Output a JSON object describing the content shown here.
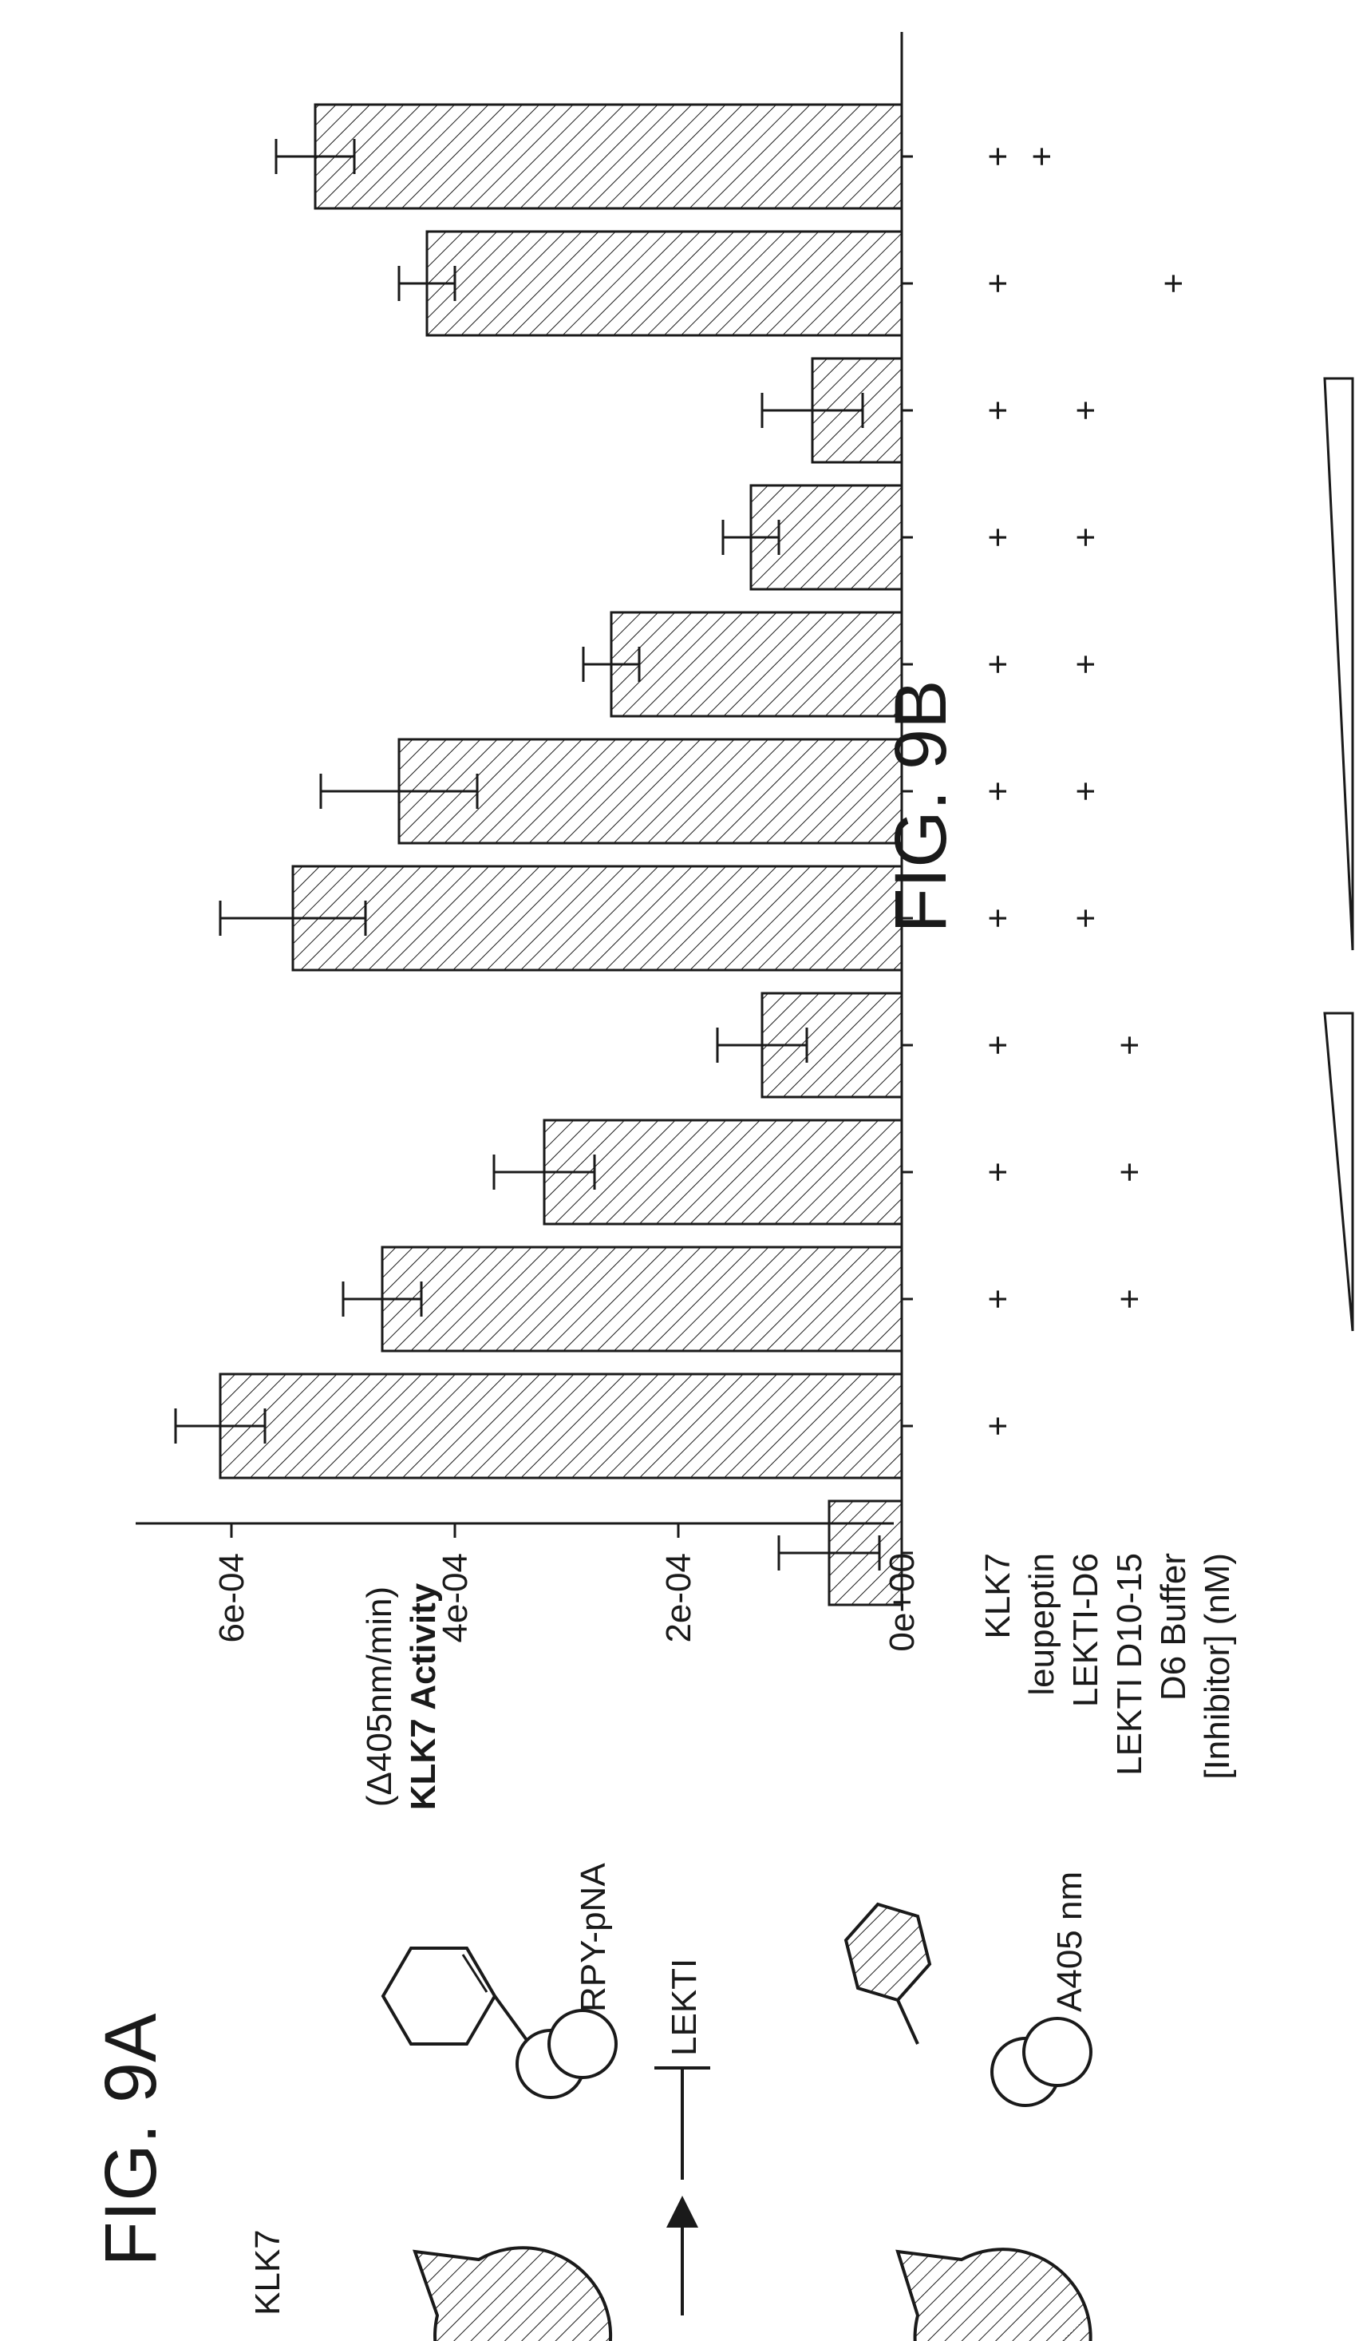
{
  "figure_a": {
    "title": "FIG. 9A",
    "labels": {
      "enzyme": "KLK7",
      "substrate": "RPY-pNA",
      "inhibitor": "LEKTI",
      "readout": "A405 nm"
    }
  },
  "chart_data": {
    "type": "bar",
    "title": "FIG. 9B",
    "ylabel_line1": "KLK7 Activity",
    "ylabel_line2": "(Δ405nm/min)",
    "ylim": [
      0,
      0.0007
    ],
    "yticks": [
      {
        "value": 0,
        "label": "0e+00"
      },
      {
        "value": 0.0002,
        "label": "2e-04"
      },
      {
        "value": 0.0004,
        "label": "4e-04"
      },
      {
        "value": 0.0006,
        "label": "6e-04"
      }
    ],
    "values": [
      6.5e-05,
      0.00061,
      0.000465,
      0.00032,
      0.000125,
      0.000545,
      0.00045,
      0.00026,
      0.000135,
      8e-05,
      0.000425,
      0.000525
    ],
    "errors": [
      4.5e-05,
      4e-05,
      3.5e-05,
      4.5e-05,
      4e-05,
      6.5e-05,
      7e-05,
      2.5e-05,
      2.5e-05,
      4.5e-05,
      2.5e-05,
      3.5e-05
    ],
    "fill": "diagonal hatch",
    "grid": false,
    "legend": "none",
    "condition_rows": [
      {
        "label": "KLK7",
        "marks": [
          false,
          true,
          true,
          true,
          true,
          true,
          true,
          true,
          true,
          true,
          true,
          true
        ]
      },
      {
        "label": "leupeptin",
        "marks": [
          false,
          false,
          false,
          false,
          false,
          false,
          false,
          false,
          false,
          false,
          false,
          true
        ]
      },
      {
        "label": "LEKTI-D6",
        "marks": [
          false,
          false,
          false,
          false,
          false,
          true,
          true,
          true,
          true,
          true,
          false,
          false
        ]
      },
      {
        "label": "LEKTI D10-15",
        "marks": [
          false,
          false,
          true,
          true,
          true,
          false,
          false,
          false,
          false,
          false,
          false,
          false
        ]
      },
      {
        "label": "D6 Buffer",
        "marks": [
          false,
          false,
          false,
          false,
          false,
          false,
          false,
          false,
          false,
          false,
          true,
          false
        ]
      },
      {
        "label": "[Inhibitor] (nM)",
        "marks": []
      }
    ],
    "mark_symbol": "+",
    "gradients": [
      {
        "from_bar": 2,
        "to_bar": 4
      },
      {
        "from_bar": 5,
        "to_bar": 9
      }
    ]
  }
}
